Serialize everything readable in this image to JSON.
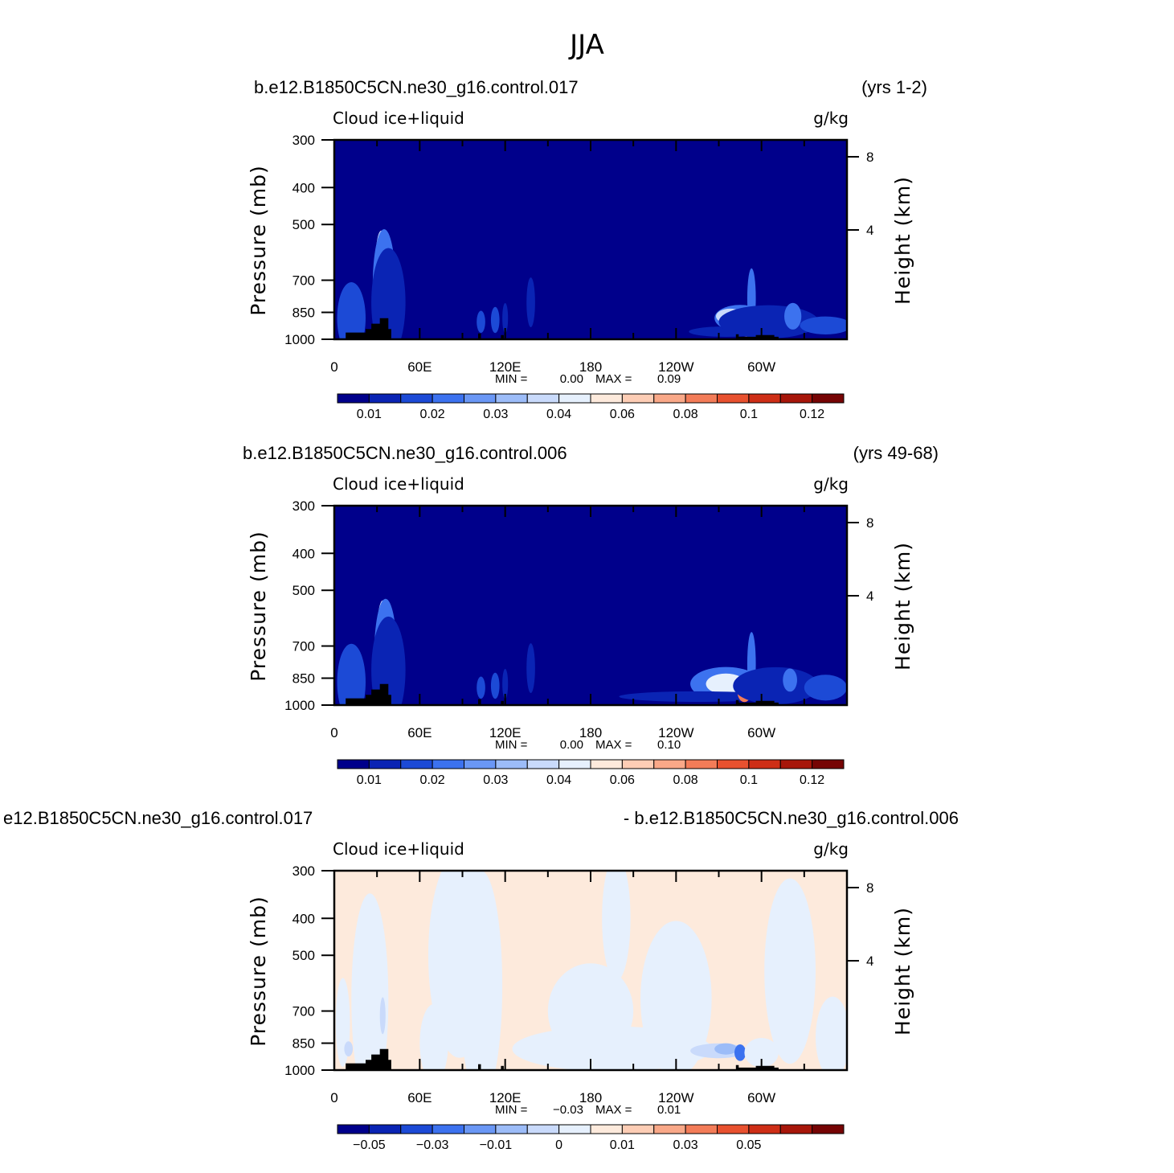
{
  "main_title": "JJA",
  "colors": {
    "cmap": [
      "#00008b",
      "#0a24b4",
      "#1c4ad6",
      "#3c72ef",
      "#6a97f5",
      "#9cbcf8",
      "#c9dafb",
      "#e6f0fd",
      "#fdeadc",
      "#fdcdb5",
      "#f9a888",
      "#f37c58",
      "#e8512f",
      "#ce2e16",
      "#a7160a",
      "#760404"
    ],
    "terrain": "#000000",
    "frame": "#000000"
  },
  "chart_data": [
    {
      "type": "heatmap",
      "case_title": "b.e12.B1850C5CN.ne30_g16.control.017",
      "years": "(yrs 1-2)",
      "left_string": "Cloud ice+liquid",
      "right_string": "g/kg",
      "ylabel": "Pressure (mb)",
      "ylabel_right": "Height (km)",
      "x_ticks": [
        "0",
        "60E",
        "120E",
        "180",
        "120W",
        "60W"
      ],
      "y_ticks": [
        "300",
        "400",
        "500",
        "700",
        "850",
        "1000"
      ],
      "y_right_ticks": [
        "8",
        "4"
      ],
      "min_label": "MIN =",
      "min_value": "0.00",
      "max_label": "MAX =",
      "max_value": "0.09",
      "colorbar_labels": [
        "0.01",
        "0.02",
        "0.03",
        "0.04",
        "0.06",
        "0.08",
        "0.1",
        "0.12"
      ],
      "background_level": 0,
      "blobs": [
        {
          "lon": 10,
          "p": 890,
          "rx": 4,
          "rp": 95,
          "level": 10
        },
        {
          "lon": 10,
          "p": 890,
          "rx": 7,
          "rp": 140,
          "level": 5
        },
        {
          "lon": 12,
          "p": 880,
          "rx": 10,
          "rp": 190,
          "level": 2
        },
        {
          "lon": 33,
          "p": 620,
          "rx": 4,
          "rp": 110,
          "level": 6
        },
        {
          "lon": 35,
          "p": 720,
          "rx": 8,
          "rp": 240,
          "level": 3
        },
        {
          "lon": 38,
          "p": 800,
          "rx": 12,
          "rp": 260,
          "level": 1
        },
        {
          "lon": 103,
          "p": 900,
          "rx": 3,
          "rp": 60,
          "level": 2
        },
        {
          "lon": 113,
          "p": 890,
          "rx": 3,
          "rp": 70,
          "level": 2
        },
        {
          "lon": 120,
          "p": 880,
          "rx": 2,
          "rp": 80,
          "level": 1
        },
        {
          "lon": 138,
          "p": 800,
          "rx": 3,
          "rp": 120,
          "level": 1
        },
        {
          "lon": 285,
          "p": 880,
          "rx": 18,
          "rp": 70,
          "level": 3
        },
        {
          "lon": 278,
          "p": 870,
          "rx": 10,
          "rp": 40,
          "level": 6
        },
        {
          "lon": 275,
          "p": 955,
          "rx": 26,
          "rp": 30,
          "level": 1
        },
        {
          "lon": 290,
          "p": 930,
          "rx": 5,
          "rp": 55,
          "level": 10
        },
        {
          "lon": 293,
          "p": 780,
          "rx": 3,
          "rp": 140,
          "level": 3
        },
        {
          "lon": 305,
          "p": 900,
          "rx": 35,
          "rp": 90,
          "level": 1
        },
        {
          "lon": 345,
          "p": 920,
          "rx": 18,
          "rp": 50,
          "level": 2
        },
        {
          "lon": 322,
          "p": 870,
          "rx": 6,
          "rp": 70,
          "level": 3
        }
      ],
      "terrain": [
        [
          4,
          1000
        ],
        [
          8,
          960
        ],
        [
          22,
          940
        ],
        [
          26,
          910
        ],
        [
          32,
          880
        ],
        [
          38,
          880
        ],
        [
          39,
          940
        ],
        [
          40,
          1000
        ],
        [
          101,
          965
        ],
        [
          103,
          1000
        ],
        [
          117,
          975
        ],
        [
          119,
          1000
        ],
        [
          282,
          1000
        ],
        [
          283,
          970
        ],
        [
          285,
          975
        ],
        [
          286,
          1000
        ],
        [
          312,
          975
        ],
        [
          313,
          1000
        ]
      ]
    },
    {
      "type": "heatmap",
      "case_title": "b.e12.B1850C5CN.ne30_g16.control.006",
      "years": "(yrs 49-68)",
      "left_string": "Cloud ice+liquid",
      "right_string": "g/kg",
      "ylabel": "Pressure (mb)",
      "ylabel_right": "Height (km)",
      "x_ticks": [
        "0",
        "60E",
        "120E",
        "180",
        "120W",
        "60W"
      ],
      "y_ticks": [
        "300",
        "400",
        "500",
        "700",
        "850",
        "1000"
      ],
      "y_right_ticks": [
        "8",
        "4"
      ],
      "min_label": "MIN =",
      "min_value": "0.00",
      "max_label": "MAX =",
      "max_value": "0.10",
      "colorbar_labels": [
        "0.01",
        "0.02",
        "0.03",
        "0.04",
        "0.06",
        "0.08",
        "0.1",
        "0.12"
      ],
      "background_level": 0,
      "blobs": [
        {
          "lon": 10,
          "p": 880,
          "rx": 4,
          "rp": 100,
          "level": 10
        },
        {
          "lon": 10,
          "p": 880,
          "rx": 7,
          "rp": 150,
          "level": 5
        },
        {
          "lon": 12,
          "p": 870,
          "rx": 10,
          "rp": 200,
          "level": 2
        },
        {
          "lon": 34,
          "p": 650,
          "rx": 4,
          "rp": 130,
          "level": 6
        },
        {
          "lon": 36,
          "p": 740,
          "rx": 8,
          "rp": 250,
          "level": 3
        },
        {
          "lon": 38,
          "p": 810,
          "rx": 12,
          "rp": 260,
          "level": 1
        },
        {
          "lon": 103,
          "p": 900,
          "rx": 3,
          "rp": 60,
          "level": 2
        },
        {
          "lon": 113,
          "p": 890,
          "rx": 3,
          "rp": 70,
          "level": 2
        },
        {
          "lon": 120,
          "p": 880,
          "rx": 2,
          "rp": 80,
          "level": 1
        },
        {
          "lon": 138,
          "p": 800,
          "rx": 3,
          "rp": 120,
          "level": 1
        },
        {
          "lon": 275,
          "p": 880,
          "rx": 25,
          "rp": 90,
          "level": 3
        },
        {
          "lon": 275,
          "p": 880,
          "rx": 14,
          "rp": 55,
          "level": 7
        },
        {
          "lon": 255,
          "p": 950,
          "rx": 55,
          "rp": 30,
          "level": 1
        },
        {
          "lon": 288,
          "p": 920,
          "rx": 5,
          "rp": 60,
          "level": 11
        },
        {
          "lon": 293,
          "p": 780,
          "rx": 3,
          "rp": 150,
          "level": 3
        },
        {
          "lon": 310,
          "p": 890,
          "rx": 30,
          "rp": 100,
          "level": 1
        },
        {
          "lon": 345,
          "p": 900,
          "rx": 15,
          "rp": 70,
          "level": 2
        },
        {
          "lon": 320,
          "p": 860,
          "rx": 5,
          "rp": 60,
          "level": 3
        }
      ],
      "terrain": [
        [
          4,
          1000
        ],
        [
          8,
          960
        ],
        [
          22,
          940
        ],
        [
          26,
          910
        ],
        [
          32,
          880
        ],
        [
          38,
          880
        ],
        [
          39,
          940
        ],
        [
          40,
          1000
        ],
        [
          101,
          965
        ],
        [
          103,
          1000
        ],
        [
          117,
          975
        ],
        [
          119,
          1000
        ],
        [
          282,
          1000
        ],
        [
          283,
          970
        ],
        [
          285,
          975
        ],
        [
          286,
          1000
        ],
        [
          312,
          975
        ],
        [
          313,
          1000
        ]
      ]
    },
    {
      "type": "heatmap",
      "case_title": "e12.B1850C5CN.ne30_g16.control.017",
      "years": "- b.e12.B1850C5CN.ne30_g16.control.006",
      "left_string": "Cloud ice+liquid",
      "right_string": "g/kg",
      "ylabel": "Pressure (mb)",
      "ylabel_right": "Height (km)",
      "x_ticks": [
        "0",
        "60E",
        "120E",
        "180",
        "120W",
        "60W"
      ],
      "y_ticks": [
        "300",
        "400",
        "500",
        "700",
        "850",
        "1000"
      ],
      "y_right_ticks": [
        "8",
        "4"
      ],
      "min_label": "MIN =",
      "min_value": "−0.03",
      "max_label": "MAX =",
      "max_value": "0.01",
      "colorbar_labels": [
        "−0.05",
        "−0.03",
        "−0.01",
        "0",
        "0.01",
        "0.03",
        "0.05"
      ],
      "background_level": 8,
      "blobs": [
        {
          "lon": 25,
          "p": 650,
          "rx": 13,
          "rp": 400,
          "level": 7
        },
        {
          "lon": 6,
          "p": 750,
          "rx": 5,
          "rp": 200,
          "level": 7
        },
        {
          "lon": 34,
          "p": 720,
          "rx": 2,
          "rp": 80,
          "level": 6
        },
        {
          "lon": 88,
          "p": 500,
          "rx": 22,
          "rp": 300,
          "level": 7
        },
        {
          "lon": 70,
          "p": 850,
          "rx": 10,
          "rp": 200,
          "level": 7
        },
        {
          "lon": 103,
          "p": 600,
          "rx": 15,
          "rp": 400,
          "level": 7
        },
        {
          "lon": 195,
          "p": 880,
          "rx": 70,
          "rp": 120,
          "level": 7
        },
        {
          "lon": 180,
          "p": 700,
          "rx": 30,
          "rp": 200,
          "level": 7
        },
        {
          "lon": 198,
          "p": 400,
          "rx": 10,
          "rp": 150,
          "level": 7
        },
        {
          "lon": 240,
          "p": 650,
          "rx": 25,
          "rp": 300,
          "level": 7
        },
        {
          "lon": 270,
          "p": 890,
          "rx": 20,
          "rp": 40,
          "level": 6
        },
        {
          "lon": 275,
          "p": 880,
          "rx": 8,
          "rp": 30,
          "level": 5
        },
        {
          "lon": 285,
          "p": 900,
          "rx": 4,
          "rp": 45,
          "level": 3
        },
        {
          "lon": 320,
          "p": 550,
          "rx": 18,
          "rp": 300,
          "level": 7
        },
        {
          "lon": 300,
          "p": 900,
          "rx": 12,
          "rp": 80,
          "level": 7
        },
        {
          "lon": 350,
          "p": 820,
          "rx": 12,
          "rp": 200,
          "level": 7
        },
        {
          "lon": 10,
          "p": 880,
          "rx": 3,
          "rp": 40,
          "level": 6
        }
      ],
      "terrain": [
        [
          4,
          1000
        ],
        [
          8,
          960
        ],
        [
          22,
          940
        ],
        [
          26,
          910
        ],
        [
          32,
          880
        ],
        [
          38,
          880
        ],
        [
          39,
          940
        ],
        [
          40,
          1000
        ],
        [
          101,
          965
        ],
        [
          103,
          1000
        ],
        [
          117,
          975
        ],
        [
          119,
          1000
        ],
        [
          282,
          1000
        ],
        [
          283,
          970
        ],
        [
          285,
          975
        ],
        [
          286,
          1000
        ],
        [
          312,
          975
        ],
        [
          313,
          1000
        ]
      ]
    }
  ]
}
